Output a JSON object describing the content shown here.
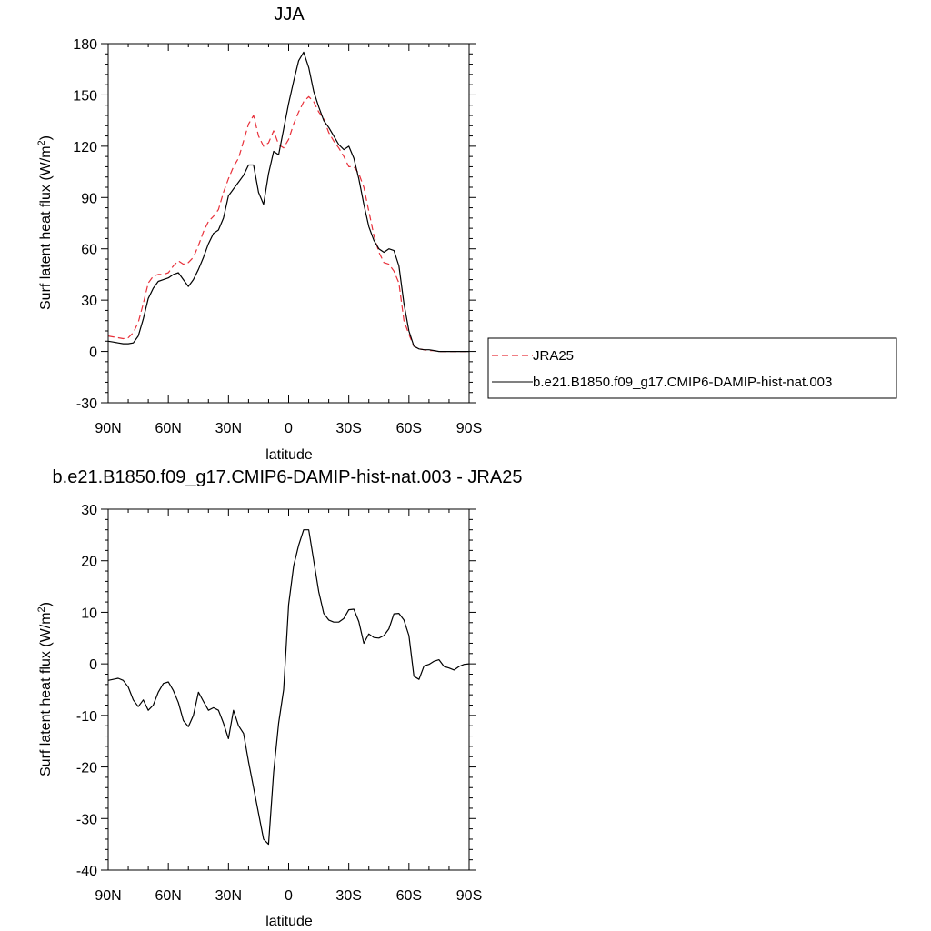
{
  "chart_data": [
    {
      "type": "line",
      "title": "JJA",
      "xlabel": "latitude",
      "ylabel": "Surf latent heat flux (W/m",
      "ylabel_sup": "2",
      "ylabel_close": ")",
      "xlim": [
        90,
        -90
      ],
      "ylim": [
        -30,
        180
      ],
      "xticks": [
        90,
        60,
        30,
        0,
        -30,
        -60,
        -90
      ],
      "xtick_labels": [
        "90N",
        "60N",
        "30N",
        "0",
        "30S",
        "60S",
        "90S"
      ],
      "yticks": [
        -30,
        0,
        30,
        60,
        90,
        120,
        150,
        180
      ],
      "ytick_labels": [
        "-30",
        "0",
        "30",
        "60",
        "90",
        "120",
        "150",
        "180"
      ],
      "series": [
        {
          "name": "JRA25",
          "color": "#e8303a",
          "dash": "dashed",
          "x": [
            90,
            87.5,
            85,
            82.5,
            80,
            77.5,
            75,
            72.5,
            70,
            67.5,
            65,
            62.5,
            60,
            57.5,
            55,
            52.5,
            50,
            47.5,
            45,
            42.5,
            40,
            37.5,
            35,
            32.5,
            30,
            27.5,
            25,
            22.5,
            20,
            17.5,
            15,
            12.5,
            10,
            7.5,
            5,
            2.5,
            0,
            -2.5,
            -5,
            -7.5,
            -10,
            -12.5,
            -15,
            -17.5,
            -20,
            -22.5,
            -25,
            -27.5,
            -30,
            -32.5,
            -35,
            -37.5,
            -40,
            -42.5,
            -45,
            -47.5,
            -50,
            -52.5,
            -55,
            -57.5,
            -60,
            -62.5,
            -65,
            -67.5,
            -70,
            -72.5,
            -75,
            -77.5,
            -80,
            -82.5,
            -85,
            -87.5,
            -90
          ],
          "y": [
            9,
            8.5,
            8,
            7.5,
            8,
            11,
            17,
            28,
            40,
            44,
            45,
            45,
            46,
            50,
            53,
            51,
            52,
            55,
            62,
            70,
            76,
            79,
            83,
            93,
            101,
            108,
            113,
            123,
            133,
            138,
            126,
            120,
            122,
            129,
            121,
            119,
            124,
            133,
            140,
            146,
            149,
            146,
            140,
            136,
            128,
            123,
            119,
            114,
            108,
            108,
            104,
            96,
            82,
            68,
            58,
            52,
            51,
            47,
            40,
            18,
            10,
            3,
            1.5,
            1,
            0.5,
            0.5,
            0,
            0,
            0,
            0,
            0,
            0,
            0
          ]
        },
        {
          "name": "b.e21.B1850.f09_g17.CMIP6-DAMIP-hist-nat.003",
          "color": "#000000",
          "dash": "solid",
          "x": [
            90,
            87.5,
            85,
            82.5,
            80,
            77.5,
            75,
            72.5,
            70,
            67.5,
            65,
            62.5,
            60,
            57.5,
            55,
            52.5,
            50,
            47.5,
            45,
            42.5,
            40,
            37.5,
            35,
            32.5,
            30,
            27.5,
            25,
            22.5,
            20,
            17.5,
            15,
            12.5,
            10,
            7.5,
            5,
            2.5,
            0,
            -2.5,
            -5,
            -7.5,
            -10,
            -12.5,
            -15,
            -17.5,
            -20,
            -22.5,
            -25,
            -27.5,
            -30,
            -32.5,
            -35,
            -37.5,
            -40,
            -42.5,
            -45,
            -47.5,
            -50,
            -52.5,
            -55,
            -57.5,
            -60,
            -62.5,
            -65,
            -67.5,
            -70,
            -72.5,
            -75,
            -77.5,
            -80,
            -82.5,
            -85,
            -87.5,
            -90
          ],
          "y": [
            6,
            5.5,
            5,
            4.5,
            4.5,
            5,
            9,
            19,
            31,
            37,
            41,
            42,
            43,
            45,
            46,
            42,
            38,
            42,
            48,
            55,
            63,
            69,
            71,
            78,
            91,
            95,
            99,
            103,
            109,
            109,
            93,
            86,
            104,
            117,
            115,
            130,
            145,
            158,
            170,
            175,
            166,
            152,
            143,
            135,
            131,
            126,
            121,
            118,
            120,
            113,
            101,
            86,
            73,
            65,
            60,
            58,
            60,
            59,
            50,
            28,
            12,
            3,
            1.5,
            1,
            1,
            0.5,
            0,
            0,
            0,
            0,
            0,
            0,
            0
          ]
        }
      ],
      "legend": {
        "placement": "right",
        "entries": [
          "JRA25",
          "b.e21.B1850.f09_g17.CMIP6-DAMIP-hist-nat.003"
        ]
      }
    },
    {
      "type": "line",
      "title": "b.e21.B1850.f09_g17.CMIP6-DAMIP-hist-nat.003 - JRA25",
      "xlabel": "latitude",
      "ylabel": "Surf latent heat flux (W/m",
      "ylabel_sup": "2",
      "ylabel_close": ")",
      "xlim": [
        90,
        -90
      ],
      "ylim": [
        -40,
        30
      ],
      "xticks": [
        90,
        60,
        30,
        0,
        -30,
        -60,
        -90
      ],
      "xtick_labels": [
        "90N",
        "60N",
        "30N",
        "0",
        "30S",
        "60S",
        "90S"
      ],
      "yticks": [
        -40,
        -30,
        -20,
        -10,
        0,
        10,
        20,
        30
      ],
      "ytick_labels": [
        "-40",
        "-30",
        "-20",
        "-10",
        "0",
        "10",
        "20",
        "30"
      ],
      "series": [
        {
          "color": "#000000",
          "dash": "solid",
          "x": [
            90,
            87.5,
            85,
            82.5,
            80,
            77.5,
            75,
            72.5,
            70,
            67.5,
            65,
            62.5,
            60,
            57.5,
            55,
            52.5,
            50,
            47.5,
            45,
            42.5,
            40,
            37.5,
            35,
            32.5,
            30,
            27.5,
            25,
            22.5,
            20,
            17.5,
            15,
            12.5,
            10,
            7.5,
            5,
            2.5,
            0,
            -2.5,
            -5,
            -7.5,
            -10,
            -12.5,
            -15,
            -17.5,
            -20,
            -22.5,
            -25,
            -27.5,
            -30,
            -32.5,
            -35,
            -37.5,
            -40,
            -42.5,
            -45,
            -47.5,
            -50,
            -52.5,
            -55,
            -57.5,
            -60,
            -62.5,
            -65,
            -67.5,
            -70,
            -72.5,
            -75,
            -77.5,
            -80,
            -82.5,
            -85,
            -87.5,
            -90
          ],
          "y": [
            -3.2,
            -3,
            -2.8,
            -3.2,
            -4.5,
            -7,
            -8.3,
            -7,
            -9,
            -8,
            -5.5,
            -3.8,
            -3.5,
            -5.2,
            -7.5,
            -11,
            -12.2,
            -10,
            -5.5,
            -7.3,
            -9,
            -8.5,
            -9,
            -11.5,
            -14.5,
            -9,
            -12,
            -13.5,
            -19,
            -24,
            -29,
            -34,
            -35,
            -21,
            -11.5,
            -5,
            11.5,
            19,
            23,
            26,
            26,
            20,
            14,
            9.8,
            8.5,
            8.1,
            8.1,
            8.8,
            10.5,
            10.6,
            8.2,
            4,
            5.8,
            5.1,
            5,
            5.5,
            6.8,
            9.7,
            9.8,
            8.5,
            5.5,
            -2.4,
            -3,
            -0.4,
            -0.1,
            0.5,
            0.8,
            -0.5,
            -0.8,
            -1.2,
            -0.5,
            -0.1,
            0
          ]
        }
      ]
    }
  ]
}
